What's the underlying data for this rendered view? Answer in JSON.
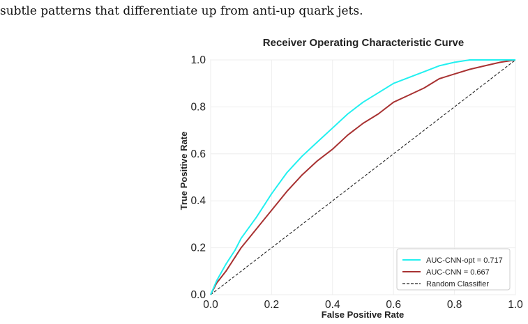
{
  "document": {
    "caption_text": "subtle patterns that differentiate up from anti-up quark jets."
  },
  "chart_data": {
    "type": "line",
    "title": "Receiver Operating Characteristic Curve",
    "xlabel": "False Positive Rate",
    "ylabel": "True Positive Rate",
    "xlim": [
      0,
      1
    ],
    "ylim": [
      0,
      1
    ],
    "xticks": [
      "0.0",
      "0.2",
      "0.4",
      "0.6",
      "0.8",
      "1.0"
    ],
    "yticks": [
      "0.0",
      "0.2",
      "0.4",
      "0.6",
      "0.8",
      "1.0"
    ],
    "grid": true,
    "legend_position": "lower-right",
    "series": [
      {
        "name": "AUC-CNN-opt = 0.717",
        "color": "#22f0f0",
        "style": "solid",
        "x": [
          0,
          0.02,
          0.05,
          0.08,
          0.1,
          0.15,
          0.2,
          0.25,
          0.3,
          0.35,
          0.4,
          0.45,
          0.5,
          0.55,
          0.6,
          0.65,
          0.7,
          0.75,
          0.8,
          0.85,
          0.9,
          0.95,
          1.0
        ],
        "y": [
          0,
          0.06,
          0.13,
          0.19,
          0.24,
          0.33,
          0.43,
          0.52,
          0.59,
          0.65,
          0.71,
          0.77,
          0.82,
          0.86,
          0.9,
          0.925,
          0.95,
          0.975,
          0.99,
          1.0,
          1.0,
          1.0,
          1.0
        ]
      },
      {
        "name": "AUC-CNN = 0.667",
        "color": "#a83232",
        "style": "solid",
        "x": [
          0,
          0.02,
          0.05,
          0.08,
          0.1,
          0.15,
          0.2,
          0.25,
          0.3,
          0.35,
          0.4,
          0.45,
          0.5,
          0.55,
          0.6,
          0.65,
          0.7,
          0.75,
          0.8,
          0.85,
          0.9,
          0.95,
          1.0
        ],
        "y": [
          0,
          0.05,
          0.1,
          0.16,
          0.2,
          0.28,
          0.36,
          0.44,
          0.51,
          0.57,
          0.62,
          0.68,
          0.73,
          0.77,
          0.82,
          0.85,
          0.88,
          0.92,
          0.94,
          0.96,
          0.975,
          0.99,
          1.0
        ]
      },
      {
        "name": "Random Classifier",
        "color": "#222222",
        "style": "dashed",
        "x": [
          0,
          1
        ],
        "y": [
          0,
          1
        ]
      }
    ]
  }
}
